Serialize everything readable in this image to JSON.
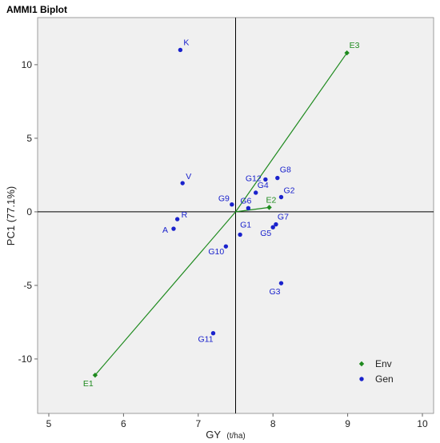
{
  "chart_data": {
    "type": "scatter",
    "title": "AMMI1 Biplot",
    "xlabel_main": "GY",
    "xlabel_unit": "(t/ha)",
    "ylabel": "PC1 (77.1%)",
    "xlim": [
      4.85,
      10.15
    ],
    "ylim": [
      -13.7,
      13.2
    ],
    "xticks": [
      5,
      6,
      7,
      8,
      9,
      10
    ],
    "yticks": [
      -10,
      -5,
      0,
      5,
      10
    ],
    "ref_x": 7.5,
    "ref_y": 0,
    "grid": false,
    "legend_position": "bottom-right",
    "colors": {
      "env": "#1e8a1e",
      "gen": "#1a22cc",
      "background": "#f0f0f0"
    },
    "series": [
      {
        "name": "Env",
        "marker": "diamond",
        "points": [
          {
            "label": "E1",
            "x": 5.62,
            "y": -11.1
          },
          {
            "label": "E2",
            "x": 7.95,
            "y": 0.3
          },
          {
            "label": "E3",
            "x": 8.99,
            "y": 10.8
          }
        ]
      },
      {
        "name": "Gen",
        "marker": "circle",
        "points": [
          {
            "label": "K",
            "x": 6.76,
            "y": 11.0
          },
          {
            "label": "V",
            "x": 6.79,
            "y": 1.95
          },
          {
            "label": "R",
            "x": 6.72,
            "y": -0.5
          },
          {
            "label": "A",
            "x": 6.67,
            "y": -1.15
          },
          {
            "label": "G9",
            "x": 7.45,
            "y": 0.5
          },
          {
            "label": "G6",
            "x": 7.67,
            "y": 0.25
          },
          {
            "label": "G4",
            "x": 7.77,
            "y": 1.3
          },
          {
            "label": "G8",
            "x": 8.06,
            "y": 2.3
          },
          {
            "label": "G2",
            "x": 8.11,
            "y": 1.0
          },
          {
            "label": "G12",
            "x": 7.9,
            "y": 2.2
          },
          {
            "label": "G7",
            "x": 8.04,
            "y": -0.85
          },
          {
            "label": "G5",
            "x": 8.0,
            "y": -1.05
          },
          {
            "label": "G1",
            "x": 7.56,
            "y": -1.55
          },
          {
            "label": "G10",
            "x": 7.37,
            "y": -2.35
          },
          {
            "label": "G3",
            "x": 8.11,
            "y": -4.85
          },
          {
            "label": "G11",
            "x": 7.2,
            "y": -8.25
          }
        ]
      }
    ]
  }
}
